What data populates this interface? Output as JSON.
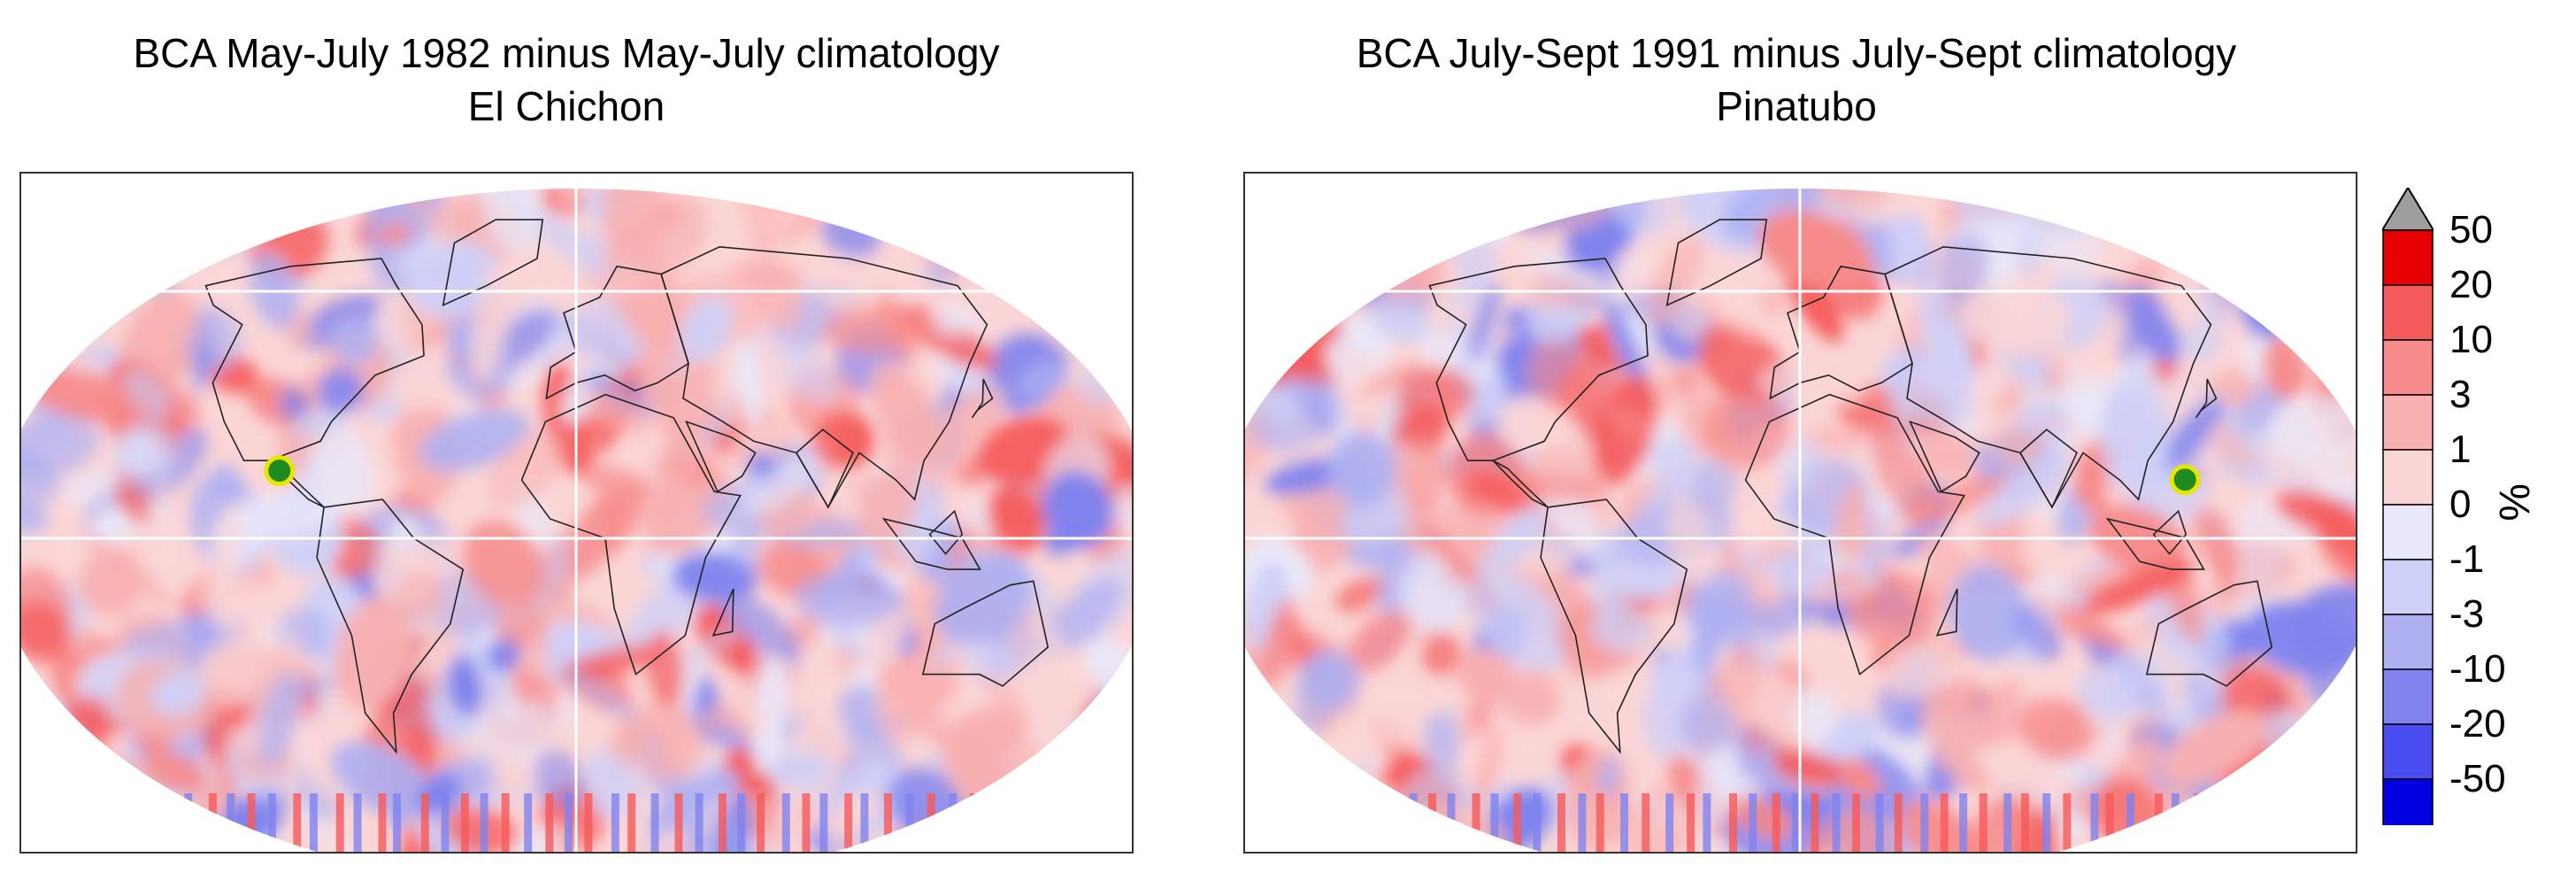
{
  "panels": [
    {
      "title_line1": "BCA May-July 1982  minus May-July climatology",
      "title_line2": "El Chichon",
      "marker_name": "El Chichon",
      "marker_lon": -93.2,
      "marker_lat": 17.4
    },
    {
      "title_line1": "BCA July-Sept 1991 minus July-Sept climatology",
      "title_line2": "Pinatubo",
      "marker_name": "Pinatubo",
      "marker_lon": 120.4,
      "marker_lat": 15.1
    }
  ],
  "colorbar": {
    "unit": "%",
    "levels": [
      "50",
      "20",
      "10",
      "3",
      "1",
      "0",
      "-1",
      "-3",
      "-10",
      "-20",
      "-50"
    ],
    "colors": [
      "#e60000",
      "#f55a5a",
      "#f78a8a",
      "#f8b0b0",
      "#fbd6d6",
      "#e9e9fb",
      "#cfd0f7",
      "#aeb0f2",
      "#8083ee",
      "#4a4df0",
      "#0000e0"
    ],
    "over_color": "#9e9e9e",
    "under_color": "#000000"
  },
  "colors": {
    "marker_fill": "#1f8a1f",
    "marker_ring": "#e6e600",
    "coast": "#222222"
  }
}
